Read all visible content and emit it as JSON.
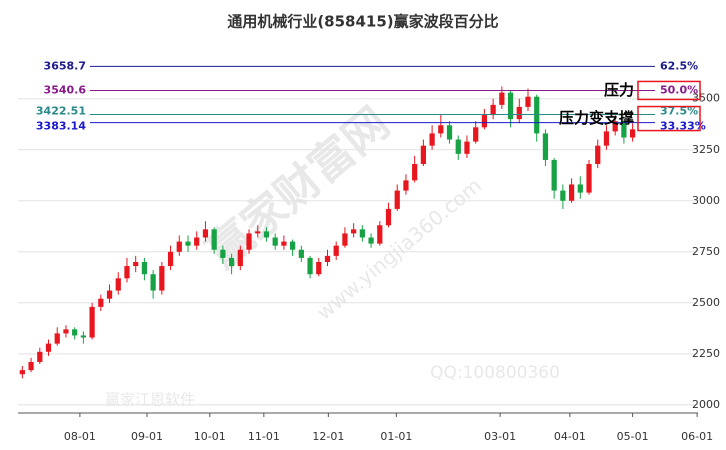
{
  "chart_data": {
    "type": "candlestick",
    "title": "通用机械行业(858415)赢家波段百分比",
    "up_color": "#e8161e",
    "down_color": "#17a345",
    "open": [
      2150,
      2170,
      2210,
      2260,
      2300,
      2350,
      2370,
      2340,
      2330,
      2480,
      2520,
      2560,
      2620,
      2680,
      2700,
      2640,
      2560,
      2680,
      2750,
      2800,
      2780,
      2820,
      2860,
      2760,
      2720,
      2680,
      2760,
      2840,
      2850,
      2820,
      2780,
      2800,
      2760,
      2720,
      2640,
      2700,
      2730,
      2780,
      2840,
      2860,
      2820,
      2790,
      2880,
      2960,
      3050,
      3100,
      3180,
      3270,
      3330,
      3370,
      3300,
      3230,
      3290,
      3360,
      3420,
      3470,
      3530,
      3400,
      3460,
      3510,
      3330,
      3200,
      3050,
      3000,
      3080,
      3040,
      3180,
      3270,
      3340,
      3390,
      3310
    ],
    "high": [
      2190,
      2230,
      2280,
      2320,
      2380,
      2390,
      2380,
      2360,
      2500,
      2540,
      2590,
      2650,
      2720,
      2730,
      2720,
      2660,
      2700,
      2780,
      2830,
      2830,
      2850,
      2900,
      2870,
      2780,
      2740,
      2780,
      2860,
      2880,
      2870,
      2840,
      2830,
      2810,
      2780,
      2730,
      2720,
      2760,
      2800,
      2870,
      2890,
      2880,
      2840,
      2900,
      2990,
      3080,
      3130,
      3220,
      3300,
      3370,
      3420,
      3390,
      3320,
      3320,
      3390,
      3450,
      3500,
      3560,
      3540,
      3500,
      3550,
      3520,
      3350,
      3210,
      3080,
      3110,
      3120,
      3200,
      3300,
      3370,
      3420,
      3400,
      3380
    ],
    "low": [
      2130,
      2160,
      2200,
      2240,
      2290,
      2330,
      2320,
      2300,
      2320,
      2460,
      2500,
      2540,
      2600,
      2650,
      2610,
      2520,
      2540,
      2660,
      2730,
      2750,
      2760,
      2800,
      2740,
      2690,
      2640,
      2660,
      2740,
      2820,
      2800,
      2760,
      2760,
      2730,
      2700,
      2620,
      2630,
      2680,
      2710,
      2770,
      2820,
      2800,
      2770,
      2780,
      2870,
      2950,
      3030,
      3090,
      3170,
      3250,
      3310,
      3280,
      3200,
      3210,
      3280,
      3350,
      3400,
      3450,
      3360,
      3380,
      3440,
      3290,
      3170,
      3010,
      2960,
      2990,
      3010,
      3030,
      3160,
      3250,
      3320,
      3280,
      3290
    ],
    "close": [
      2170,
      2210,
      2260,
      2300,
      2350,
      2370,
      2340,
      2330,
      2480,
      2520,
      2560,
      2620,
      2680,
      2700,
      2640,
      2560,
      2680,
      2750,
      2800,
      2780,
      2820,
      2860,
      2760,
      2720,
      2680,
      2760,
      2840,
      2850,
      2820,
      2780,
      2800,
      2760,
      2720,
      2640,
      2700,
      2730,
      2780,
      2840,
      2860,
      2820,
      2790,
      2880,
      2960,
      3050,
      3100,
      3180,
      3270,
      3330,
      3370,
      3300,
      3230,
      3290,
      3360,
      3420,
      3470,
      3530,
      3400,
      3460,
      3510,
      3330,
      3200,
      3050,
      3000,
      3080,
      3040,
      3180,
      3270,
      3340,
      3390,
      3310,
      3350
    ],
    "xlim": [
      -0.5,
      77.5
    ],
    "xticks": [
      {
        "value": 6.6,
        "label": "08-01"
      },
      {
        "value": 14.3,
        "label": "09-01"
      },
      {
        "value": 21.5,
        "label": "10-01"
      },
      {
        "value": 27.7,
        "label": "11-01"
      },
      {
        "value": 35.1,
        "label": "12-01"
      },
      {
        "value": 42.9,
        "label": "01-01"
      },
      {
        "value": 54.8,
        "label": "03-01"
      },
      {
        "value": 62.8,
        "label": "04-01"
      },
      {
        "value": 70.0,
        "label": "05-01"
      },
      {
        "value": 77.4,
        "label": "06-01"
      }
    ],
    "ylim": [
      1960,
      3680
    ],
    "yticks": [
      2000,
      2250,
      2500,
      2750,
      3000,
      3250,
      3500
    ],
    "grid": true,
    "levels": [
      {
        "value": 3658.7,
        "ratio_label": "62.5%",
        "color": "#1c1c8a"
      },
      {
        "value": 3540.6,
        "ratio_label": "50.0%",
        "color": "#8a1a8a"
      },
      {
        "value": 3422.51,
        "ratio_label": "37.5%",
        "color": "#2a8a8a"
      },
      {
        "value": 3383.14,
        "ratio_label": "33.33%",
        "color": "#1a1acc"
      }
    ],
    "annotations": [
      "压力",
      "压力变支撑"
    ],
    "watermarks": [
      "赢家财富网",
      "www.yingjia360.com",
      "赢家江恩软件",
      "QQ:100800360"
    ]
  }
}
